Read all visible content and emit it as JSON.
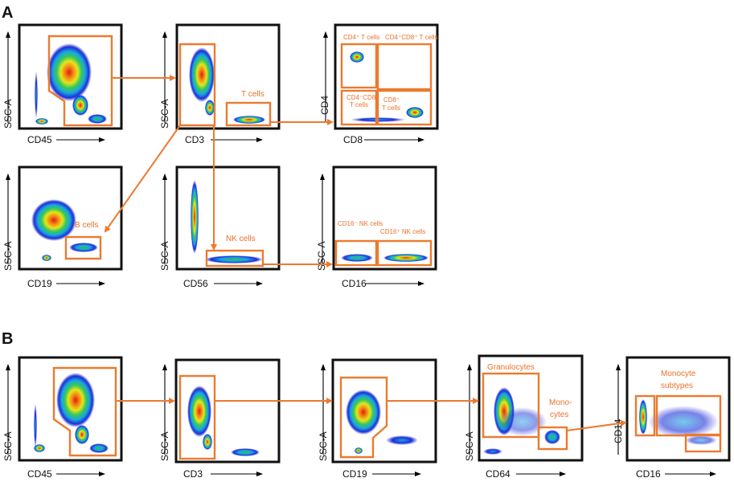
{
  "panels": {
    "A": {
      "letter": "A",
      "plots": [
        {
          "id": "a1",
          "x_axis": "CD45",
          "y_axis": "SSC-A"
        },
        {
          "id": "a2",
          "x_axis": "CD3",
          "y_axis": "SSC-A",
          "gate_label": "T cells"
        },
        {
          "id": "a3",
          "x_axis": "CD8",
          "y_axis": "CD4",
          "gate_labels": [
            "CD4⁺ T cells",
            "CD4⁺CD8⁺ T cells",
            "CD4⁻CD8⁻",
            "T cells",
            "CD8⁺",
            "T cells"
          ]
        },
        {
          "id": "a4",
          "x_axis": "CD19",
          "y_axis": "SSC-A",
          "gate_label": "B cells"
        },
        {
          "id": "a5",
          "x_axis": "CD56",
          "y_axis": "SSC-A",
          "gate_label": "NK cells"
        },
        {
          "id": "a6",
          "x_axis": "CD16",
          "y_axis": "SSC-A",
          "gate_labels": [
            "CD16⁻ NK cells",
            "CD16⁺ NK cells"
          ]
        }
      ]
    },
    "B": {
      "letter": "B",
      "plots": [
        {
          "id": "b1",
          "x_axis": "CD45",
          "y_axis": "SSC-A"
        },
        {
          "id": "b2",
          "x_axis": "CD3",
          "y_axis": "SSC-A"
        },
        {
          "id": "b3",
          "x_axis": "CD19",
          "y_axis": "SSC-A"
        },
        {
          "id": "b4",
          "x_axis": "CD64",
          "y_axis": "SSC-A",
          "gate_labels": [
            "Granulocytes",
            "Mono-",
            "cytes"
          ]
        },
        {
          "id": "b5",
          "x_axis": "CD16",
          "y_axis": "CD14",
          "gate_labels": [
            "Monocyte",
            "subtypes"
          ]
        }
      ]
    }
  },
  "colors": {
    "gate": "#ec7a2e",
    "frame": "#111111",
    "density_low": "#2323d6",
    "density_high": "#d62020"
  }
}
